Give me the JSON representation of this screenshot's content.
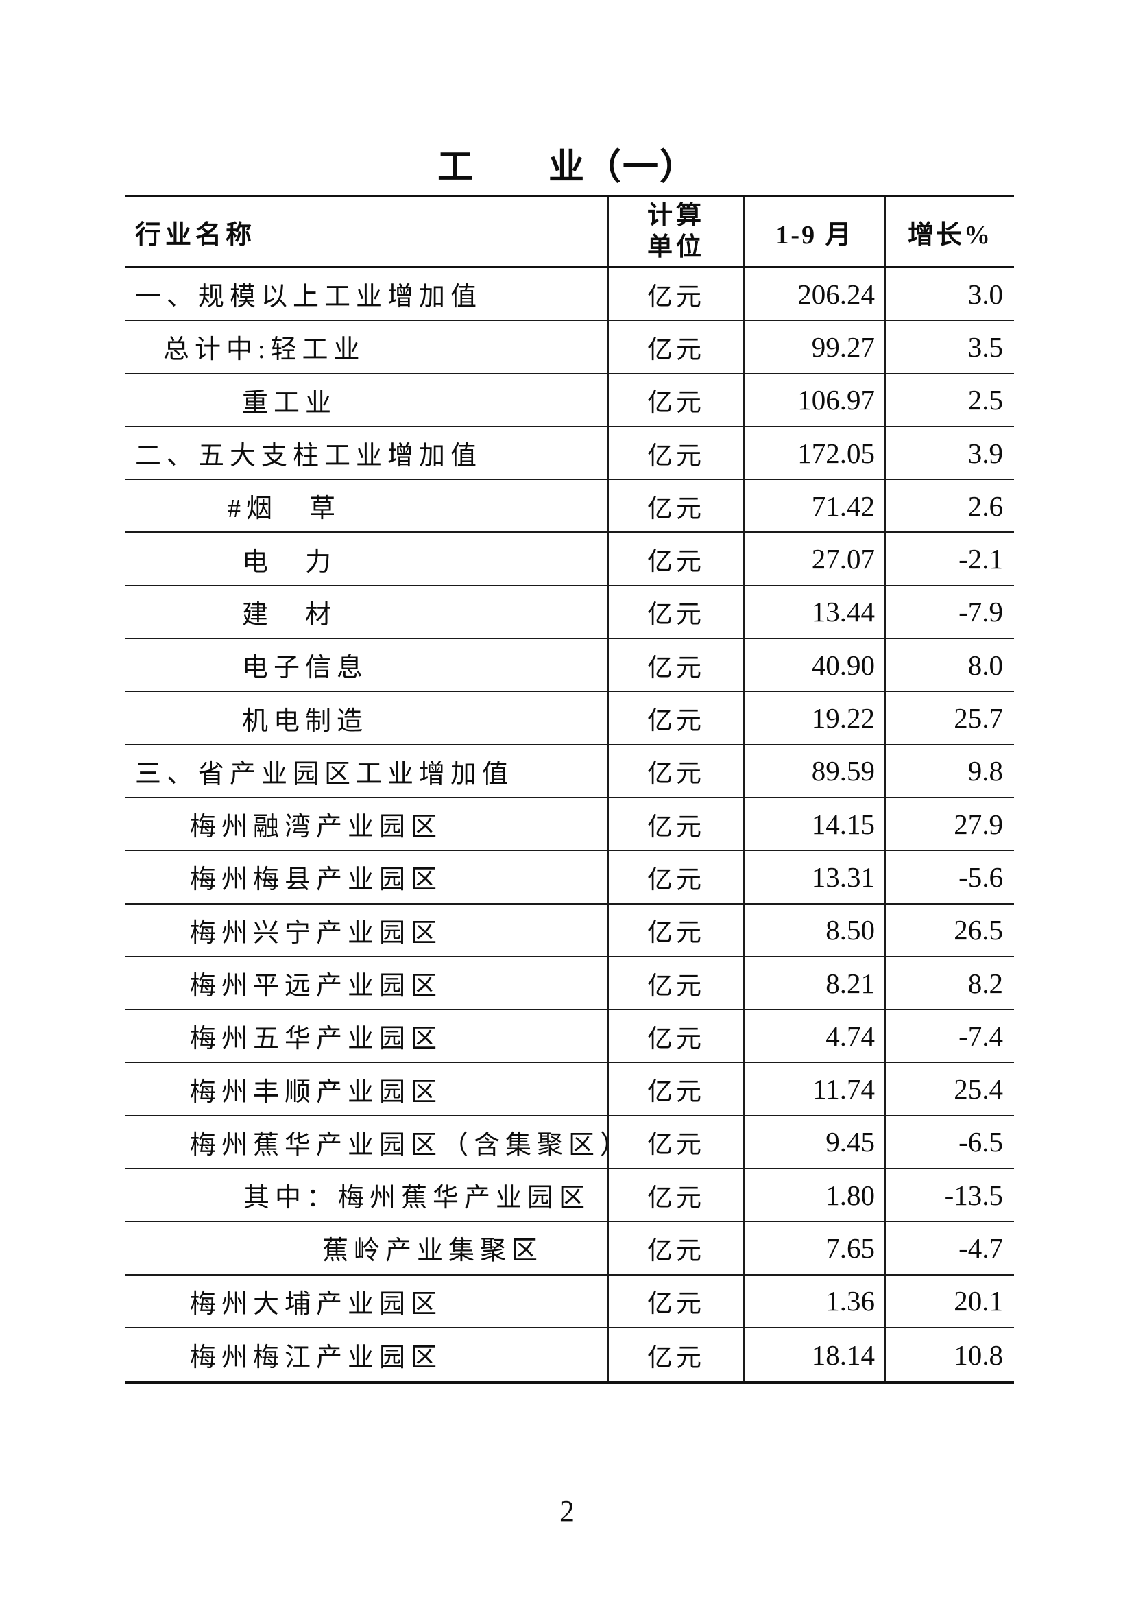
{
  "title": "工　　业（一）",
  "page_number": "2",
  "table": {
    "headers": {
      "industry": "行业名称",
      "unit_line1": "计算",
      "unit_line2": "单位",
      "period": "1-9 月",
      "growth": "增长%"
    },
    "rows": [
      {
        "label": "一、规模以上工业增加值",
        "indent": 14,
        "unit": "亿元",
        "value": "206.24",
        "growth": "3.0"
      },
      {
        "label": "总计中:轻工业",
        "indent": 55,
        "unit": "亿元",
        "value": "99.27",
        "growth": "3.5"
      },
      {
        "label": "重工业",
        "indent": 170,
        "unit": "亿元",
        "value": "106.97",
        "growth": "2.5"
      },
      {
        "label": "二、五大支柱工业增加值",
        "indent": 14,
        "unit": "亿元",
        "value": "172.05",
        "growth": "3.9"
      },
      {
        "label": "#烟　草",
        "indent": 149,
        "unit": "亿元",
        "value": "71.42",
        "growth": "2.6"
      },
      {
        "label": "电　力",
        "indent": 170,
        "unit": "亿元",
        "value": "27.07",
        "growth": "-2.1"
      },
      {
        "label": "建　材",
        "indent": 170,
        "unit": "亿元",
        "value": "13.44",
        "growth": "-7.9"
      },
      {
        "label": "电子信息",
        "indent": 170,
        "unit": "亿元",
        "value": "40.90",
        "growth": "8.0"
      },
      {
        "label": "机电制造",
        "indent": 170,
        "unit": "亿元",
        "value": "19.22",
        "growth": "25.7"
      },
      {
        "label": "三、省产业园区工业增加值",
        "indent": 14,
        "unit": "亿元",
        "value": "89.59",
        "growth": "9.8"
      },
      {
        "label": "梅州融湾产业园区",
        "indent": 94,
        "unit": "亿元",
        "value": "14.15",
        "growth": "27.9"
      },
      {
        "label": "梅州梅县产业园区",
        "indent": 94,
        "unit": "亿元",
        "value": "13.31",
        "growth": "-5.6"
      },
      {
        "label": "梅州兴宁产业园区",
        "indent": 94,
        "unit": "亿元",
        "value": "8.50",
        "growth": "26.5"
      },
      {
        "label": "梅州平远产业园区",
        "indent": 94,
        "unit": "亿元",
        "value": "8.21",
        "growth": "8.2"
      },
      {
        "label": "梅州五华产业园区",
        "indent": 94,
        "unit": "亿元",
        "value": "4.74",
        "growth": "-7.4"
      },
      {
        "label": "梅州丰顺产业园区",
        "indent": 94,
        "unit": "亿元",
        "value": "11.74",
        "growth": "25.4"
      },
      {
        "label": "梅州蕉华产业园区（含集聚区）",
        "indent": 94,
        "unit": "亿元",
        "value": "9.45",
        "growth": "-6.5"
      },
      {
        "label": "其中：梅州蕉华产业园区",
        "indent": 172,
        "unit": "亿元",
        "value": "1.80",
        "growth": "-13.5"
      },
      {
        "label": "蕉岭产业集聚区",
        "indent": 287,
        "unit": "亿元",
        "value": "7.65",
        "growth": "-4.7"
      },
      {
        "label": "梅州大埔产业园区",
        "indent": 94,
        "unit": "亿元",
        "value": "1.36",
        "growth": "20.1"
      },
      {
        "label": "梅州梅江产业园区",
        "indent": 94,
        "unit": "亿元",
        "value": "18.14",
        "growth": "10.8"
      }
    ]
  }
}
